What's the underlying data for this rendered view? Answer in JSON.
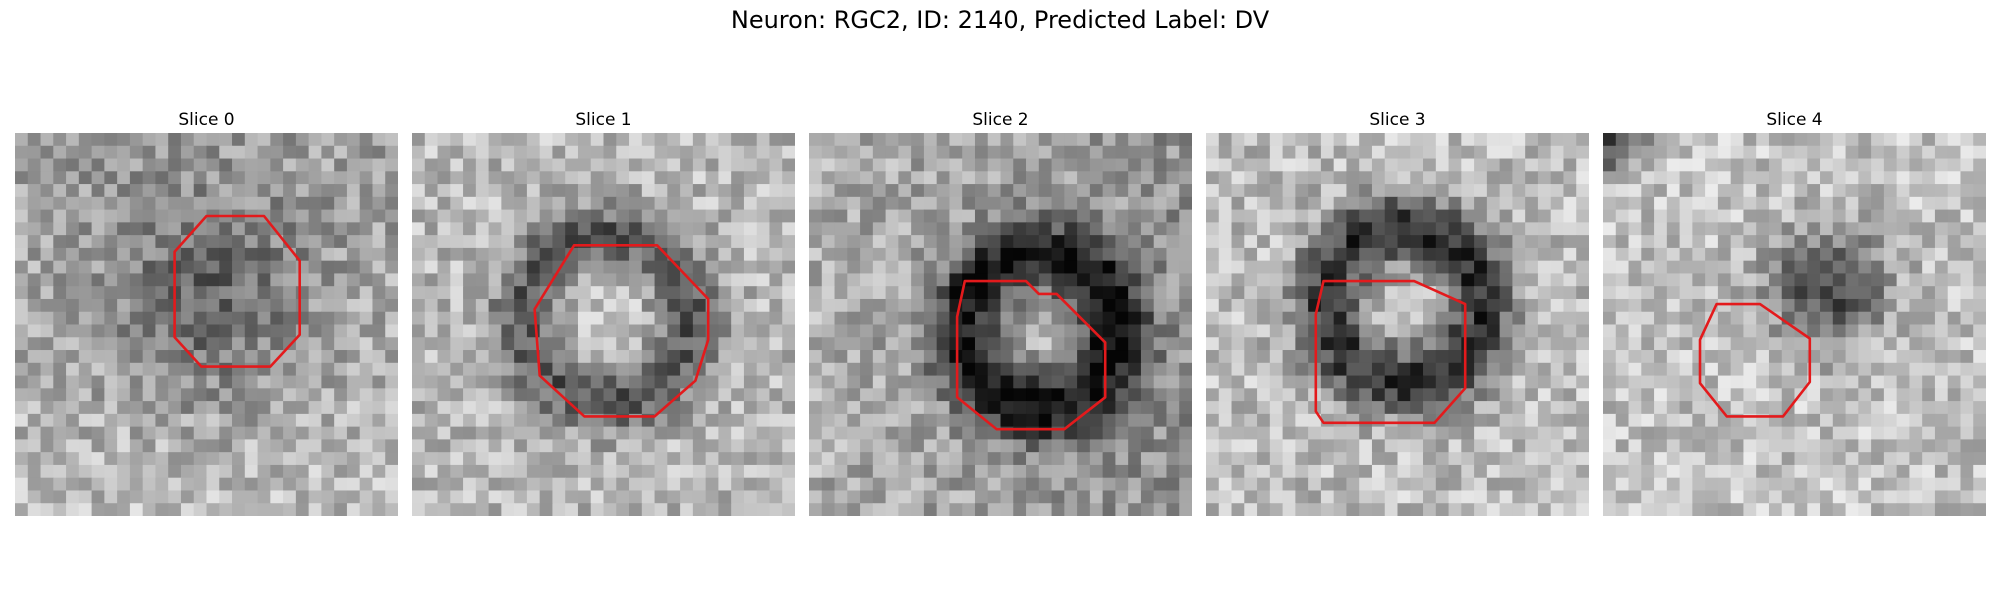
{
  "figure": {
    "title": "Neuron: RGC2, ID: 2140, Predicted Label: DV"
  },
  "slices": [
    {
      "title": "Slice 0"
    },
    {
      "title": "Slice 1"
    },
    {
      "title": "Slice 2"
    },
    {
      "title": "Slice 3"
    },
    {
      "title": "Slice 4"
    }
  ],
  "colors": {
    "roi_outline": "#e31a1c",
    "colormap": "gray"
  }
}
